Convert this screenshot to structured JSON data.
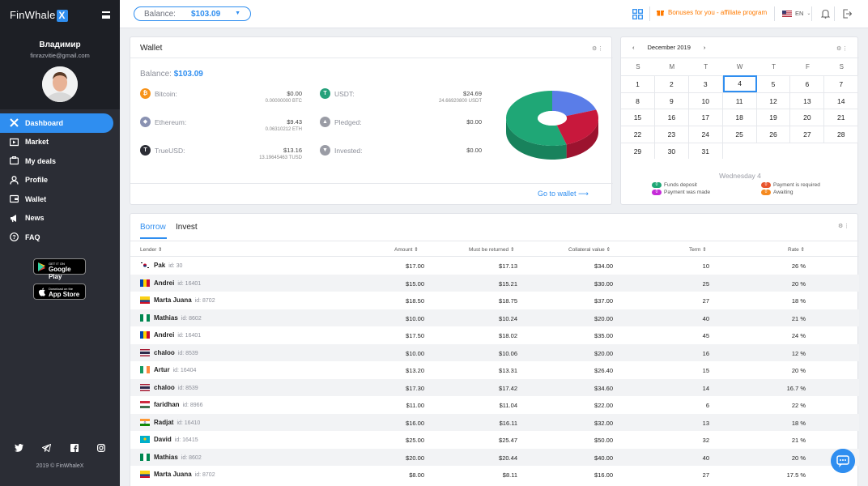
{
  "app": {
    "logo_text": "FinWhale",
    "logo_mark": "X"
  },
  "user": {
    "name": "Владимир",
    "email": "finrazvitie@gmail.com"
  },
  "sidebar": {
    "items": [
      {
        "label": "Dashboard",
        "icon": "dashboard-icon",
        "active": true
      },
      {
        "label": "Market",
        "icon": "market-icon"
      },
      {
        "label": "My deals",
        "icon": "deals-icon"
      },
      {
        "label": "Profile",
        "icon": "profile-icon"
      },
      {
        "label": "Wallet",
        "icon": "wallet-icon"
      },
      {
        "label": "News",
        "icon": "news-icon"
      },
      {
        "label": "FAQ",
        "icon": "faq-icon"
      }
    ],
    "google_play": {
      "small": "GET IT ON",
      "large": "Google Play"
    },
    "app_store": {
      "small": "Download on the",
      "large": "App Store"
    },
    "copyright": "2019 © FinWhaleX"
  },
  "topbar": {
    "balance_label": "Balance:",
    "balance_value": "$103.09",
    "bonus_text": "Bonuses for you - affiliate program",
    "lang": "EN"
  },
  "wallet": {
    "title": "Wallet",
    "balance_label": "Balance:",
    "balance_value": "$103.09",
    "goto": "Go to wallet",
    "assets": [
      {
        "name": "Bitcoin:",
        "amount": "$0.00",
        "sub": "0.00000000 BTC",
        "color": "#f7931a",
        "glyph": "₿"
      },
      {
        "name": "USDT:",
        "amount": "$24.69",
        "sub": "24.66920800 USDT",
        "color": "#26a17b",
        "glyph": "T"
      },
      {
        "name": "Ethereum:",
        "amount": "$9.43",
        "sub": "0.06310212 ETH",
        "color": "#8a92b2",
        "glyph": "◆"
      },
      {
        "name": "Pledged:",
        "amount": "$0.00",
        "sub": "",
        "color": "#9a9ca5",
        "glyph": "▲"
      },
      {
        "name": "TrueUSD:",
        "amount": "$13.16",
        "sub": "13.19645463 TUSD",
        "color": "#2b2d35",
        "glyph": "T"
      },
      {
        "name": "Invested:",
        "amount": "$0.00",
        "sub": "",
        "color": "#9a9ca5",
        "glyph": "▼"
      }
    ],
    "chart_data": {
      "type": "pie",
      "values": [
        55,
        25,
        20
      ],
      "colors": [
        "#1fa776",
        "#c8183c",
        "#5a7de8"
      ]
    }
  },
  "calendar": {
    "month": "December 2019",
    "weekdays": [
      "S",
      "M",
      "T",
      "W",
      "T",
      "F",
      "S"
    ],
    "weeks": [
      [
        "1",
        "2",
        "3",
        "4",
        "5",
        "6",
        "7"
      ],
      [
        "8",
        "9",
        "10",
        "11",
        "12",
        "13",
        "14"
      ],
      [
        "15",
        "16",
        "17",
        "18",
        "19",
        "20",
        "21"
      ],
      [
        "22",
        "23",
        "24",
        "25",
        "26",
        "27",
        "28"
      ],
      [
        "29",
        "30",
        "31",
        "",
        "",
        "",
        ""
      ]
    ],
    "selected": "4",
    "selected_label": "Wednesday 4",
    "legend": [
      {
        "label": "Funds deposit",
        "color": "#1fa776",
        "count": "0"
      },
      {
        "label": "Payment is required",
        "color": "#e8542c",
        "count": "0"
      },
      {
        "label": "Payment was made",
        "color": "#c52bd8",
        "count": "0"
      },
      {
        "label": "Awaiting",
        "color": "#f5891f",
        "count": "0"
      }
    ]
  },
  "deals": {
    "tabs": [
      "Borrow",
      "Invest"
    ],
    "columns": [
      "Lender",
      "Amount",
      "Must be returned",
      "Collateral value",
      "Term",
      "Rate"
    ],
    "rows": [
      {
        "name": "Pak",
        "id": "id: 30",
        "flag": "kr",
        "amount": "$17.00",
        "returned": "$17.13",
        "collateral": "$34.00",
        "term": "10",
        "rate": "26 %"
      },
      {
        "name": "Andrei",
        "id": "id: 16401",
        "flag": "md",
        "amount": "$15.00",
        "returned": "$15.21",
        "collateral": "$30.00",
        "term": "25",
        "rate": "20 %"
      },
      {
        "name": "Marta Juana",
        "id": "id: 8702",
        "flag": "co",
        "amount": "$18.50",
        "returned": "$18.75",
        "collateral": "$37.00",
        "term": "27",
        "rate": "18 %"
      },
      {
        "name": "Mathias",
        "id": "id: 8602",
        "flag": "ng",
        "amount": "$10.00",
        "returned": "$10.24",
        "collateral": "$20.00",
        "term": "40",
        "rate": "21 %"
      },
      {
        "name": "Andrei",
        "id": "id: 16401",
        "flag": "md",
        "amount": "$17.50",
        "returned": "$18.02",
        "collateral": "$35.00",
        "term": "45",
        "rate": "24 %"
      },
      {
        "name": "chaloo",
        "id": "id: 8539",
        "flag": "th",
        "amount": "$10.00",
        "returned": "$10.06",
        "collateral": "$20.00",
        "term": "16",
        "rate": "12 %"
      },
      {
        "name": "Artur",
        "id": "id: 16404",
        "flag": "ie",
        "amount": "$13.20",
        "returned": "$13.31",
        "collateral": "$26.40",
        "term": "15",
        "rate": "20 %"
      },
      {
        "name": "chaloo",
        "id": "id: 8539",
        "flag": "th",
        "amount": "$17.30",
        "returned": "$17.42",
        "collateral": "$34.60",
        "term": "14",
        "rate": "16.7 %"
      },
      {
        "name": "faridhan",
        "id": "id: 8966",
        "flag": "hu",
        "amount": "$11.00",
        "returned": "$11.04",
        "collateral": "$22.00",
        "term": "6",
        "rate": "22 %"
      },
      {
        "name": "Radjat",
        "id": "id: 16410",
        "flag": "in",
        "amount": "$16.00",
        "returned": "$16.11",
        "collateral": "$32.00",
        "term": "13",
        "rate": "18 %"
      },
      {
        "name": "David",
        "id": "id: 16415",
        "flag": "kz",
        "amount": "$25.00",
        "returned": "$25.47",
        "collateral": "$50.00",
        "term": "32",
        "rate": "21 %"
      },
      {
        "name": "Mathias",
        "id": "id: 8602",
        "flag": "ng",
        "amount": "$20.00",
        "returned": "$20.44",
        "collateral": "$40.00",
        "term": "40",
        "rate": "20 %"
      },
      {
        "name": "Marta Juana",
        "id": "id: 8702",
        "flag": "co",
        "amount": "$8.00",
        "returned": "$8.11",
        "collateral": "$16.00",
        "term": "27",
        "rate": "17.5 %"
      }
    ]
  }
}
